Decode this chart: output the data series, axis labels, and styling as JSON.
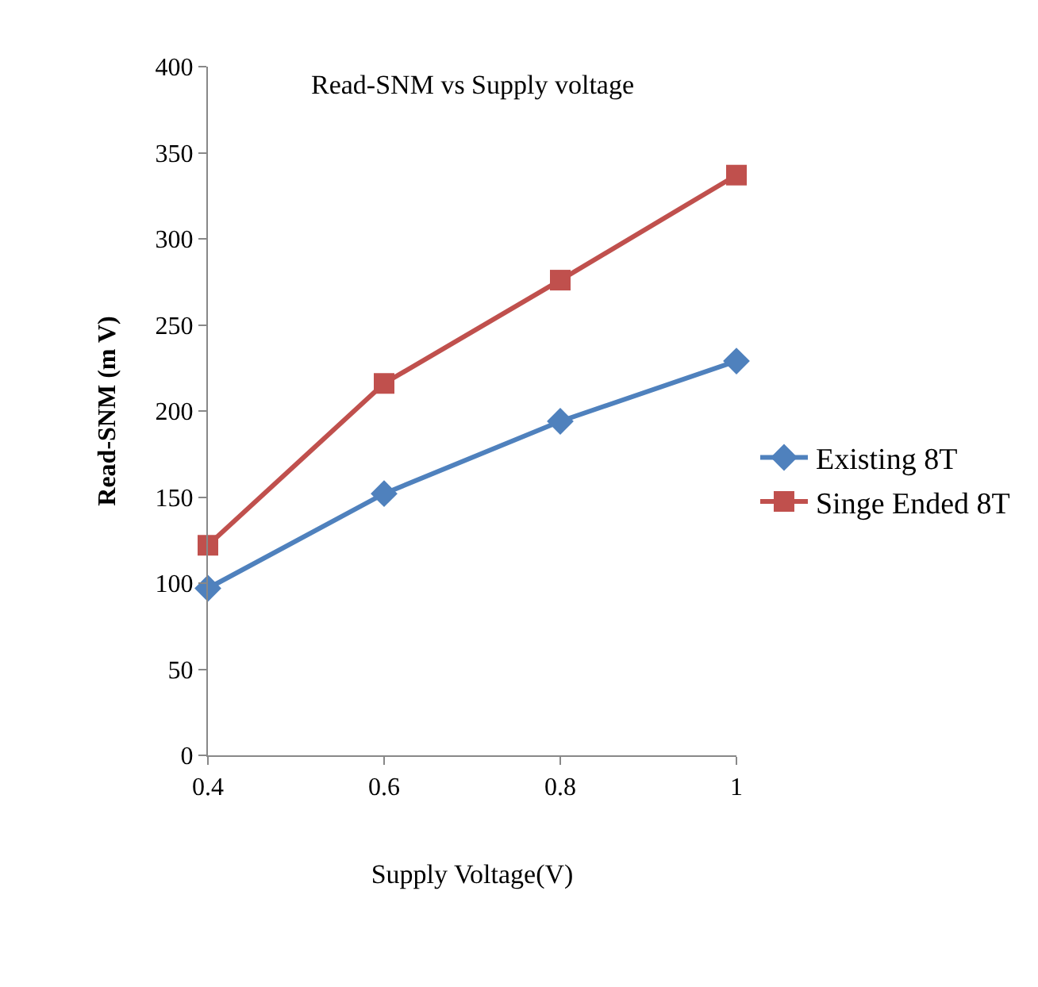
{
  "chart_data": {
    "type": "line",
    "title": "Read-SNM vs Supply voltage",
    "xlabel": "Supply Voltage(V)",
    "ylabel": "Read-SNM (m V)",
    "x": [
      0.4,
      0.6,
      0.8,
      1
    ],
    "series": [
      {
        "name": "Existing 8T",
        "color": "#4f81bd",
        "values": [
          97,
          152,
          194,
          229
        ],
        "marker": "diamond"
      },
      {
        "name": "Singe Ended 8T",
        "color": "#c0504d",
        "values": [
          122,
          216,
          276,
          337
        ],
        "marker": "square"
      }
    ],
    "xlim": [
      0.4,
      1
    ],
    "xticks": [
      0.4,
      0.6,
      0.8,
      1
    ],
    "ylim": [
      0,
      400
    ],
    "yticks": [
      0,
      50,
      100,
      150,
      200,
      250,
      300,
      350,
      400
    ],
    "grid": false,
    "legend": "right",
    "line_style": "solid"
  }
}
